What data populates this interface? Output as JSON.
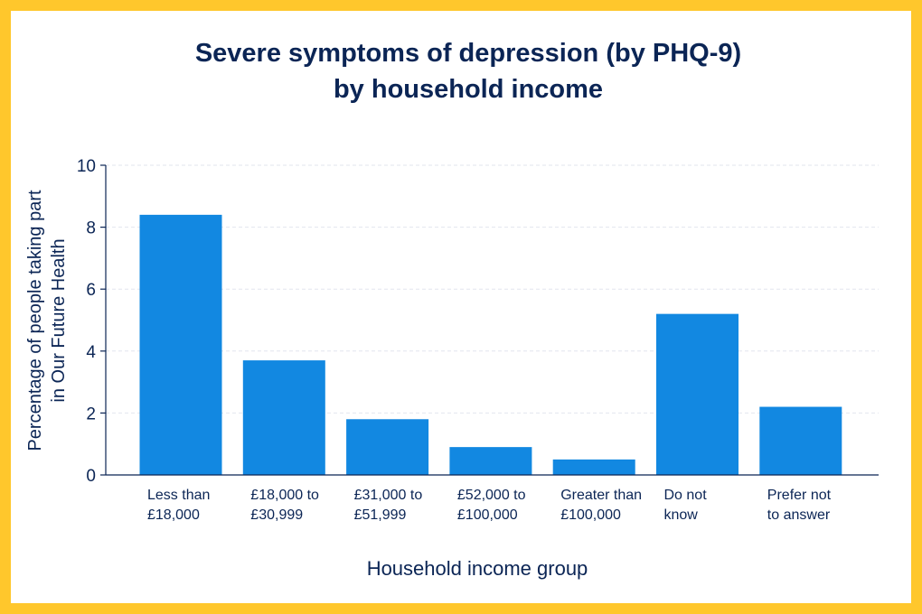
{
  "colors": {
    "frame": "#FFC72C",
    "bar": "#1288E1",
    "text": "#0B2555",
    "grid": "#E2E6EE"
  },
  "chart_data": {
    "type": "bar",
    "title": [
      "Severe symptoms of depression (by PHQ-9)",
      "by household income"
    ],
    "xlabel": "Household income group",
    "ylabel": [
      "Percentage of people taking part",
      "in Our Future Health"
    ],
    "categories": [
      [
        "Less than",
        "£18,000"
      ],
      [
        "£18,000 to",
        "£30,999"
      ],
      [
        "£31,000 to",
        "£51,999"
      ],
      [
        "£52,000 to",
        "£100,000"
      ],
      [
        "Greater than",
        "£100,000"
      ],
      [
        "Do not",
        "know"
      ],
      [
        "Prefer not",
        "to answer"
      ]
    ],
    "values": [
      8.4,
      3.7,
      1.8,
      0.9,
      0.5,
      5.2,
      2.2
    ],
    "ylim": [
      0,
      10
    ],
    "yticks": [
      "0",
      "2",
      "4",
      "6",
      "8",
      "10"
    ],
    "grid": true
  }
}
